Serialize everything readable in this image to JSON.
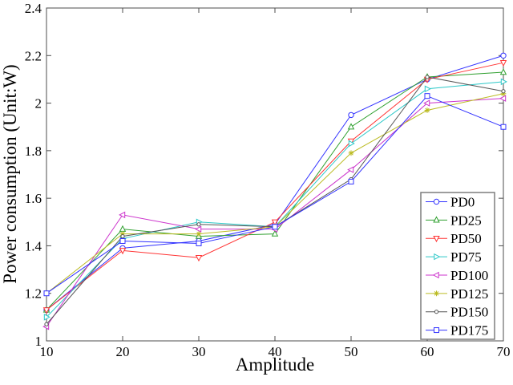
{
  "figure": {
    "background": "#ffffff",
    "axis_color": "#4d4d4d",
    "legend_border_color": "#7d7d7d"
  },
  "chart_data": {
    "type": "line",
    "title": "",
    "xlabel": "Amplitude",
    "ylabel": "Power consumption (Unit:W)",
    "xlim": [
      10,
      70
    ],
    "ylim": [
      1,
      2.4
    ],
    "grid": false,
    "legend_position": "inside-right-bottom",
    "x_ticks": {
      "values": [
        10,
        20,
        30,
        40,
        50,
        60,
        70
      ],
      "labels": [
        "10",
        "20",
        "30",
        "40",
        "50",
        "60",
        "70"
      ]
    },
    "y_ticks": {
      "values": [
        1,
        1.2,
        1.4,
        1.6,
        1.8,
        2,
        2.2,
        2.4
      ],
      "labels": [
        "1",
        "1.2",
        "1.4",
        "1.6",
        "1.8",
        "2",
        "2.2",
        "2.4"
      ]
    },
    "x": [
      10,
      20,
      30,
      40,
      50,
      60,
      70
    ],
    "series": [
      {
        "name": "PD0",
        "color": "#3333ff",
        "marker": "circle",
        "values": [
          1.13,
          1.39,
          1.42,
          1.49,
          1.95,
          2.1,
          2.2
        ]
      },
      {
        "name": "PD25",
        "color": "#30a030",
        "marker": "triangle-up",
        "values": [
          1.13,
          1.47,
          1.44,
          1.45,
          1.9,
          2.11,
          2.13
        ]
      },
      {
        "name": "PD50",
        "color": "#ff3333",
        "marker": "triangle-down",
        "values": [
          1.13,
          1.38,
          1.35,
          1.5,
          1.84,
          2.1,
          2.17
        ]
      },
      {
        "name": "PD75",
        "color": "#2cc8c8",
        "marker": "triangle-right",
        "values": [
          1.1,
          1.43,
          1.5,
          1.48,
          1.83,
          2.06,
          2.09
        ]
      },
      {
        "name": "PD100",
        "color": "#cc33cc",
        "marker": "triangle-left",
        "values": [
          1.06,
          1.53,
          1.47,
          1.47,
          1.72,
          2.0,
          2.02
        ]
      },
      {
        "name": "PD125",
        "color": "#bbbb22",
        "marker": "star",
        "values": [
          1.2,
          1.45,
          1.45,
          1.48,
          1.79,
          1.97,
          2.04
        ]
      },
      {
        "name": "PD150",
        "color": "#555555",
        "marker": "dot",
        "values": [
          1.07,
          1.44,
          1.49,
          1.48,
          1.68,
          2.11,
          2.05
        ]
      },
      {
        "name": "PD175",
        "color": "#3333ff",
        "marker": "square",
        "values": [
          1.2,
          1.42,
          1.41,
          1.48,
          1.67,
          2.03,
          1.9
        ]
      }
    ]
  }
}
